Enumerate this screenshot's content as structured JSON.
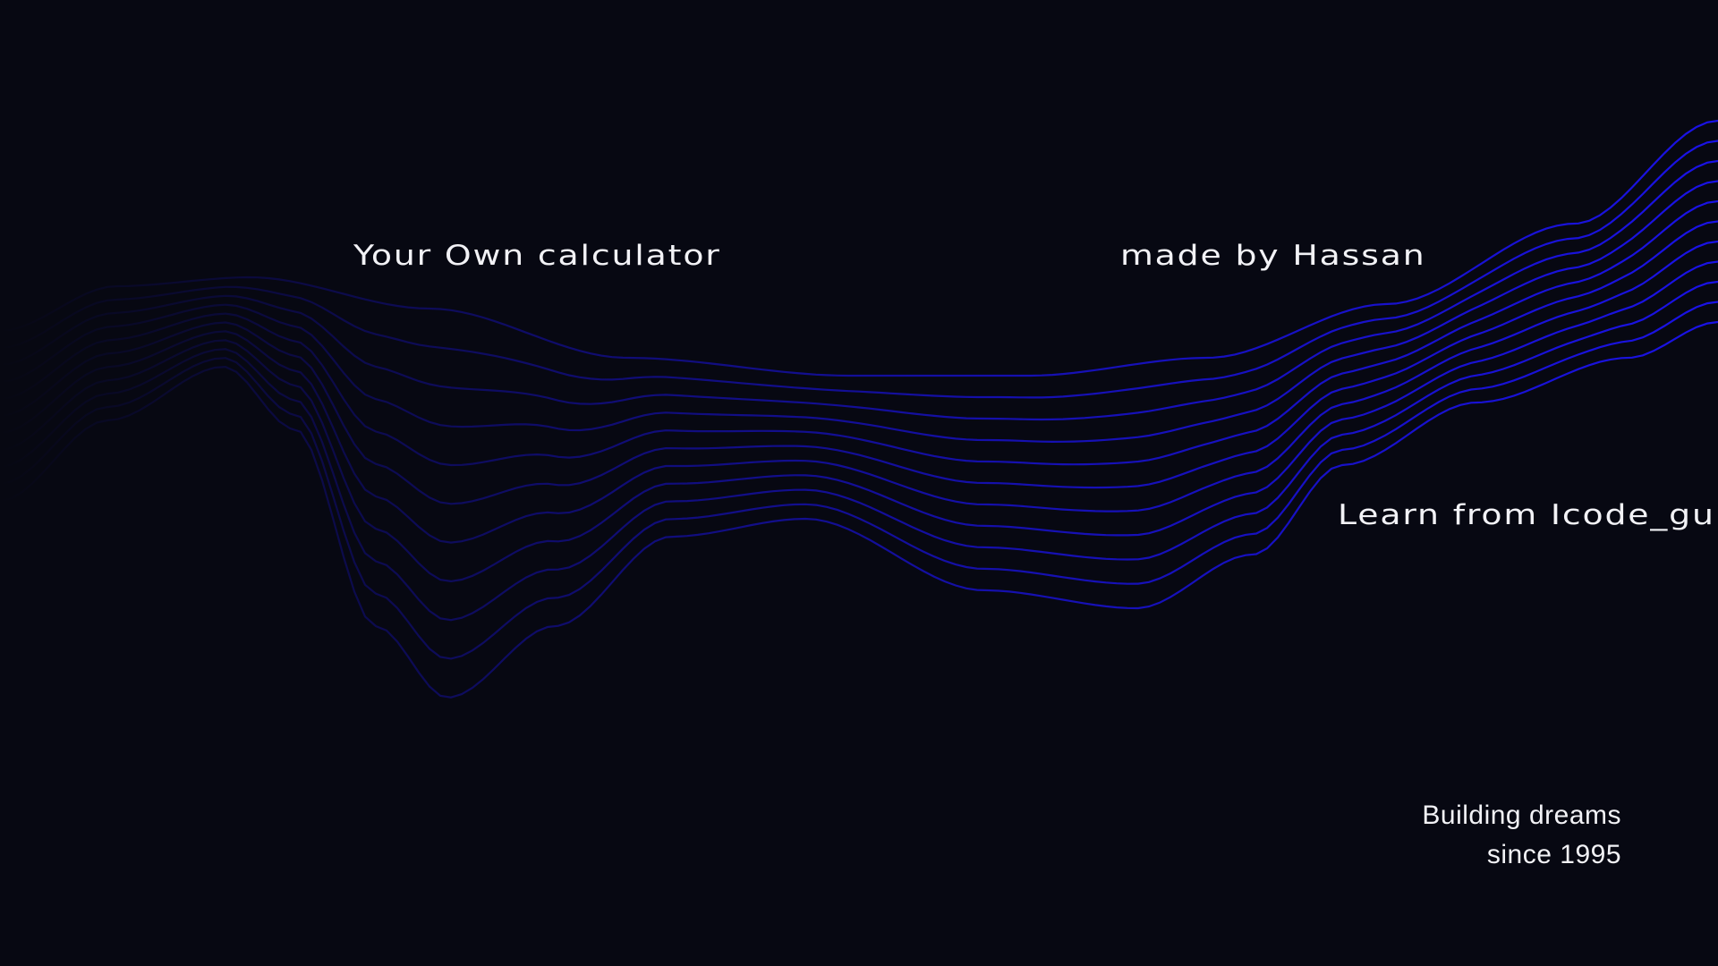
{
  "hero": {
    "title": "Your Own calculator",
    "author": "made by Hassan",
    "learn": "Learn from Icode_guru",
    "tagline_line1": "Building dreams",
    "tagline_line2": "since 1995"
  },
  "theme": {
    "background": "#070812",
    "line_color": "#1a12e6",
    "text_color": "#f2f2f6"
  },
  "waves": {
    "line_count": 11
  }
}
